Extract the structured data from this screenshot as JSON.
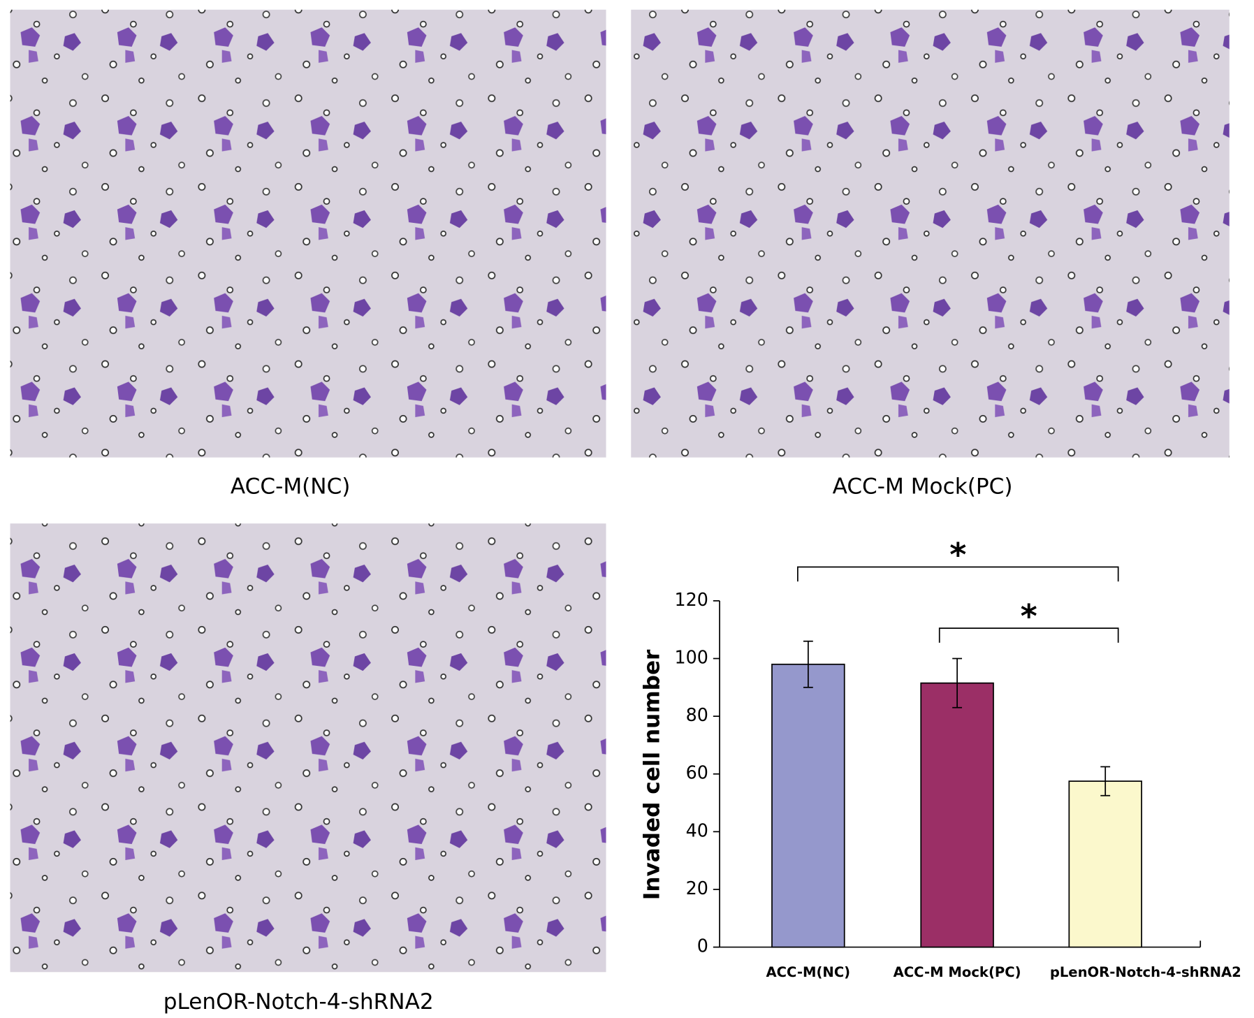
{
  "panels": [
    {
      "caption": "ACC-M(NC)"
    },
    {
      "caption": "ACC-M Mock(PC)"
    },
    {
      "caption": "pLenOR-Notch-4-shRNA2"
    }
  ],
  "chart_data": {
    "type": "bar",
    "y_label": "Invaded cell number",
    "categories": [
      "ACC-M(NC)",
      "ACC-M Mock(PC)",
      "pLenOR-Notch-4-shRNA2"
    ],
    "values": [
      98,
      91.5,
      57.5
    ],
    "errors": [
      8,
      8.5,
      5
    ],
    "colors": [
      "#9598cc",
      "#9b2f66",
      "#fbf8cc"
    ],
    "ylim": [
      0,
      120
    ],
    "yticks": [
      0,
      20,
      40,
      60,
      80,
      100,
      120
    ],
    "significance": [
      {
        "from": 0,
        "to": 2,
        "label": "*"
      },
      {
        "from": 1,
        "to": 2,
        "label": "*"
      }
    ]
  }
}
